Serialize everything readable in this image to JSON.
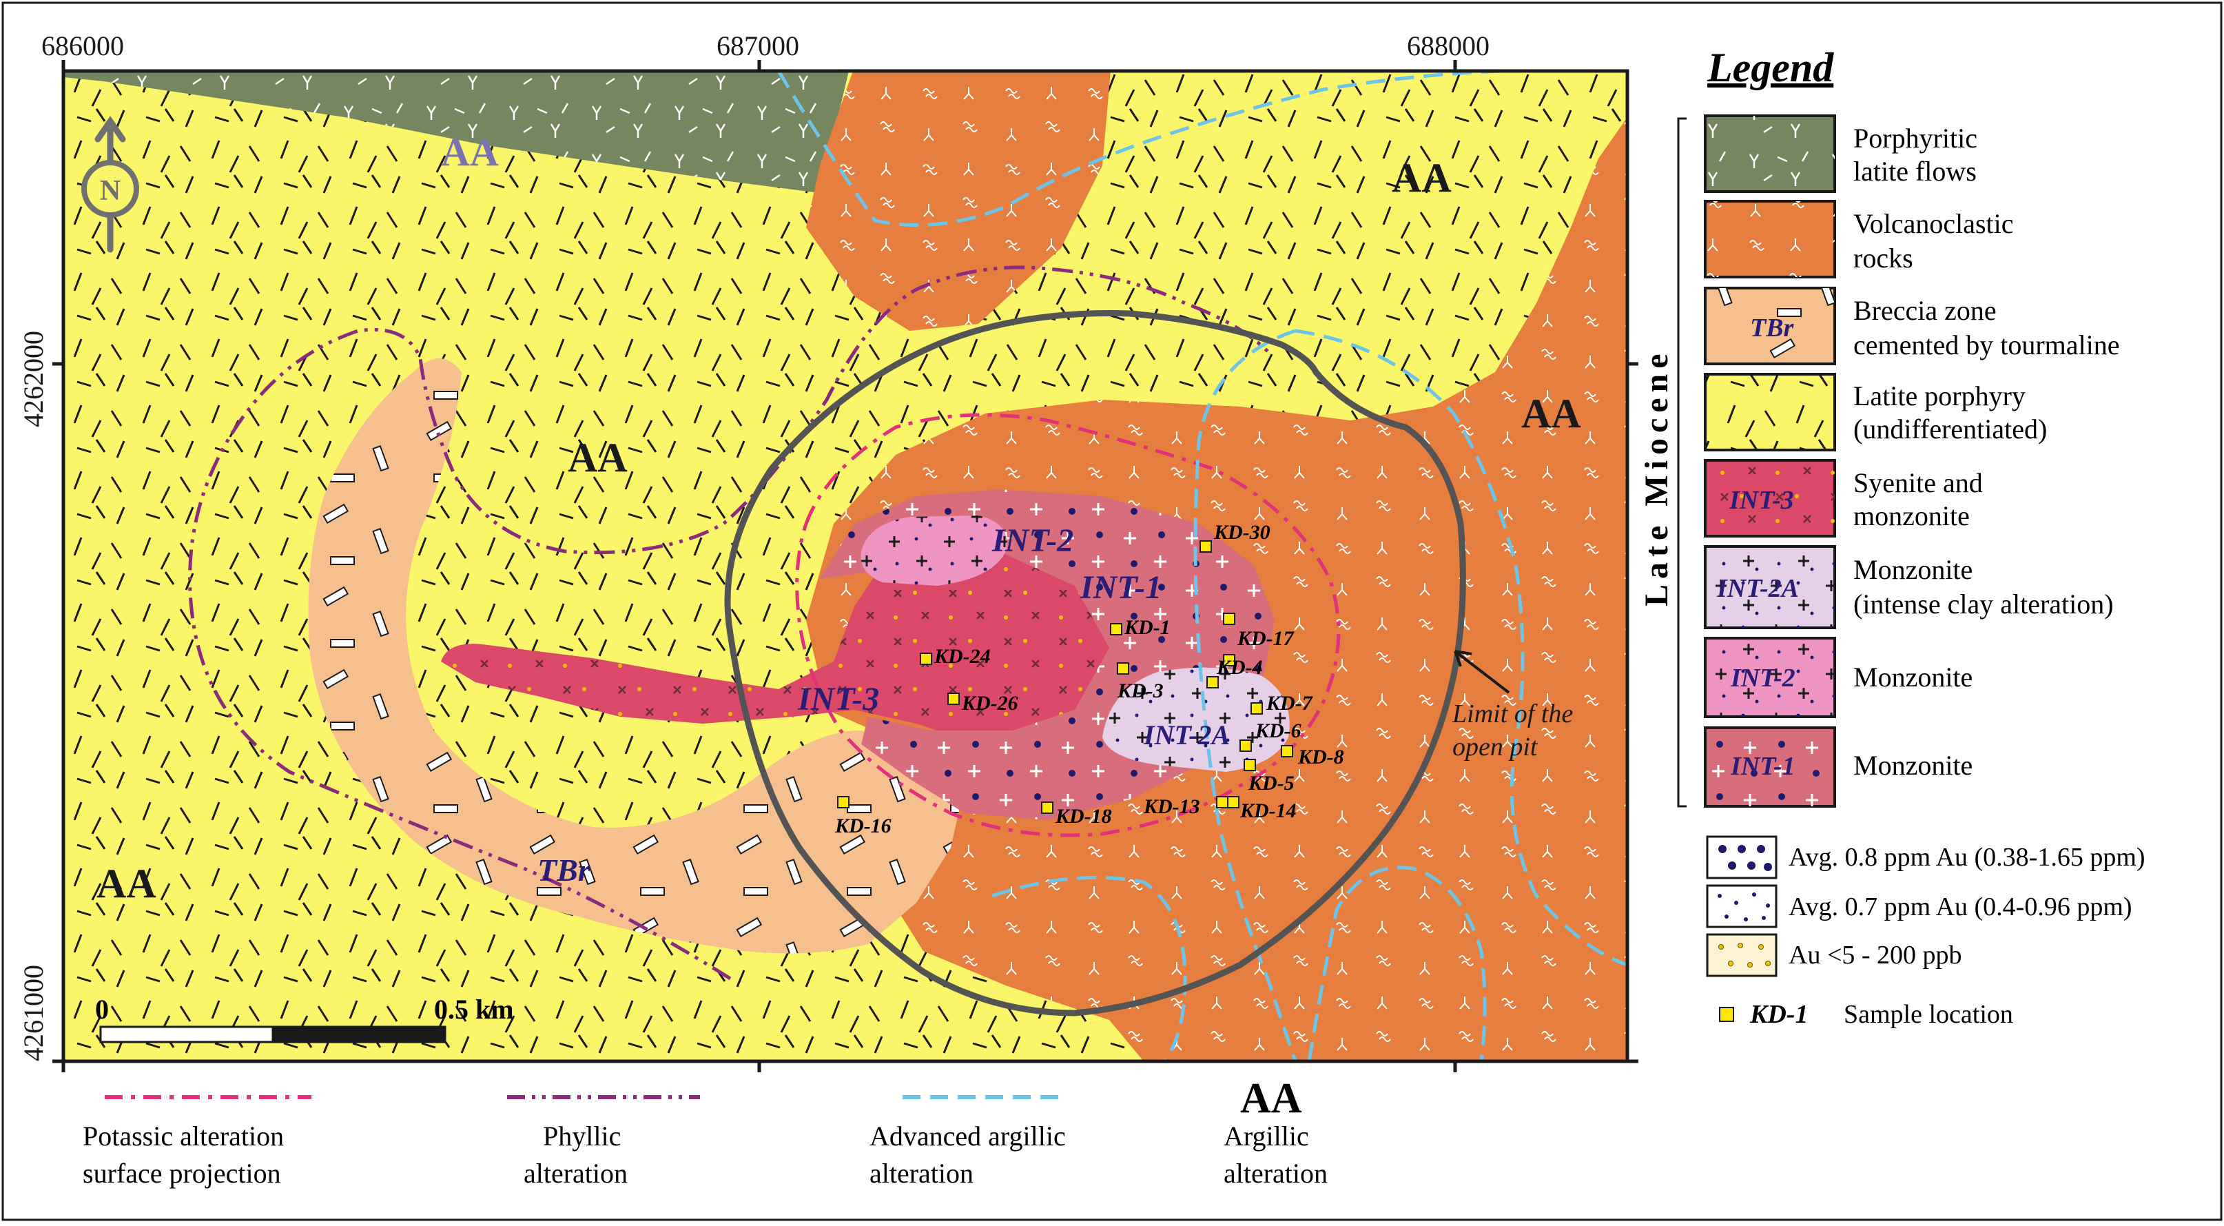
{
  "axes": {
    "x_ticks": [
      "686000",
      "687000",
      "688000"
    ],
    "y_ticks": [
      "4262000",
      "4261000"
    ]
  },
  "map_labels": {
    "aa": "AA",
    "int1": "INT-1",
    "int2": "INT-2",
    "int2a": "INT-2A",
    "int3": "INT-3",
    "tbr": "TBr",
    "pit_line1": "Limit of the",
    "pit_line2": "open pit"
  },
  "north_arrow": "N",
  "scale_bar": {
    "start": "0",
    "end": "0.5 km"
  },
  "samples": [
    {
      "id": "KD-30"
    },
    {
      "id": "KD-1"
    },
    {
      "id": "KD-17"
    },
    {
      "id": "KD-4"
    },
    {
      "id": "KD-3"
    },
    {
      "id": "KD-7"
    },
    {
      "id": "KD-6"
    },
    {
      "id": "KD-8"
    },
    {
      "id": "KD-5"
    },
    {
      "id": "KD-13"
    },
    {
      "id": "KD-14"
    },
    {
      "id": "KD-18"
    },
    {
      "id": "KD-16"
    },
    {
      "id": "KD-24"
    },
    {
      "id": "KD-26"
    }
  ],
  "legend": {
    "title": "Legend",
    "era": "Late Miocene",
    "units": [
      {
        "swatch_text": "",
        "line1": "Porphyritic",
        "line2": "latite flows",
        "color": "#76875f"
      },
      {
        "swatch_text": "",
        "line1": "Volcanoclastic",
        "line2": "rocks",
        "color": "#e57e3f"
      },
      {
        "swatch_text": "TBr",
        "line1": "Breccia zone",
        "line2": "cemented by tourmaline",
        "color": "#f6c08e"
      },
      {
        "swatch_text": "",
        "line1": "Latite porphyry",
        "line2": "(undifferentiated)",
        "color": "#fbf56a"
      },
      {
        "swatch_text": "INT-3",
        "line1": "Syenite and",
        "line2": "monzonite",
        "color": "#dc4968"
      },
      {
        "swatch_text": "INT-2A",
        "line1": "Monzonite",
        "line2": "(intense clay alteration)",
        "color": "#e6d0e8"
      },
      {
        "swatch_text": "INT-2",
        "line1": "Monzonite",
        "line2": "",
        "color": "#ef95c3"
      },
      {
        "swatch_text": "INT-1",
        "line1": "Monzonite",
        "line2": "",
        "color": "#d86d7c"
      }
    ],
    "gold": [
      {
        "label": "Avg. 0.8 ppm Au  (0.38-1.65 ppm)"
      },
      {
        "label": "Avg. 0.7 ppm Au  (0.4-0.96 ppm)"
      },
      {
        "label": "Au <5 -  200 ppb"
      }
    ],
    "sample": {
      "code": "KD-1",
      "label": "Sample location"
    }
  },
  "line_legend": [
    {
      "line1": "Potassic alteration",
      "line2": "surface projection",
      "color": "#e0317a"
    },
    {
      "line1": "Phyllic",
      "line2": "alteration",
      "color": "#8b2b7c"
    },
    {
      "line1": "Advanced argillic",
      "line2": "alteration",
      "color": "#6cc5e8"
    },
    {
      "line1": "Argillic",
      "line2": "alteration",
      "color": "",
      "symbol": "AA"
    }
  ],
  "colors": {
    "latite_flows": "#76875f",
    "volcanoclastic": "#e57e3f",
    "breccia": "#f6c08e",
    "latite_porphyry": "#fbf56a",
    "int3": "#dc4968",
    "int2a": "#e6d0e8",
    "int2": "#ef95c3",
    "int1": "#d86d7c",
    "pit": "#545454",
    "unit_label": "#2a1d78",
    "sample_marker": "#ffe800"
  }
}
